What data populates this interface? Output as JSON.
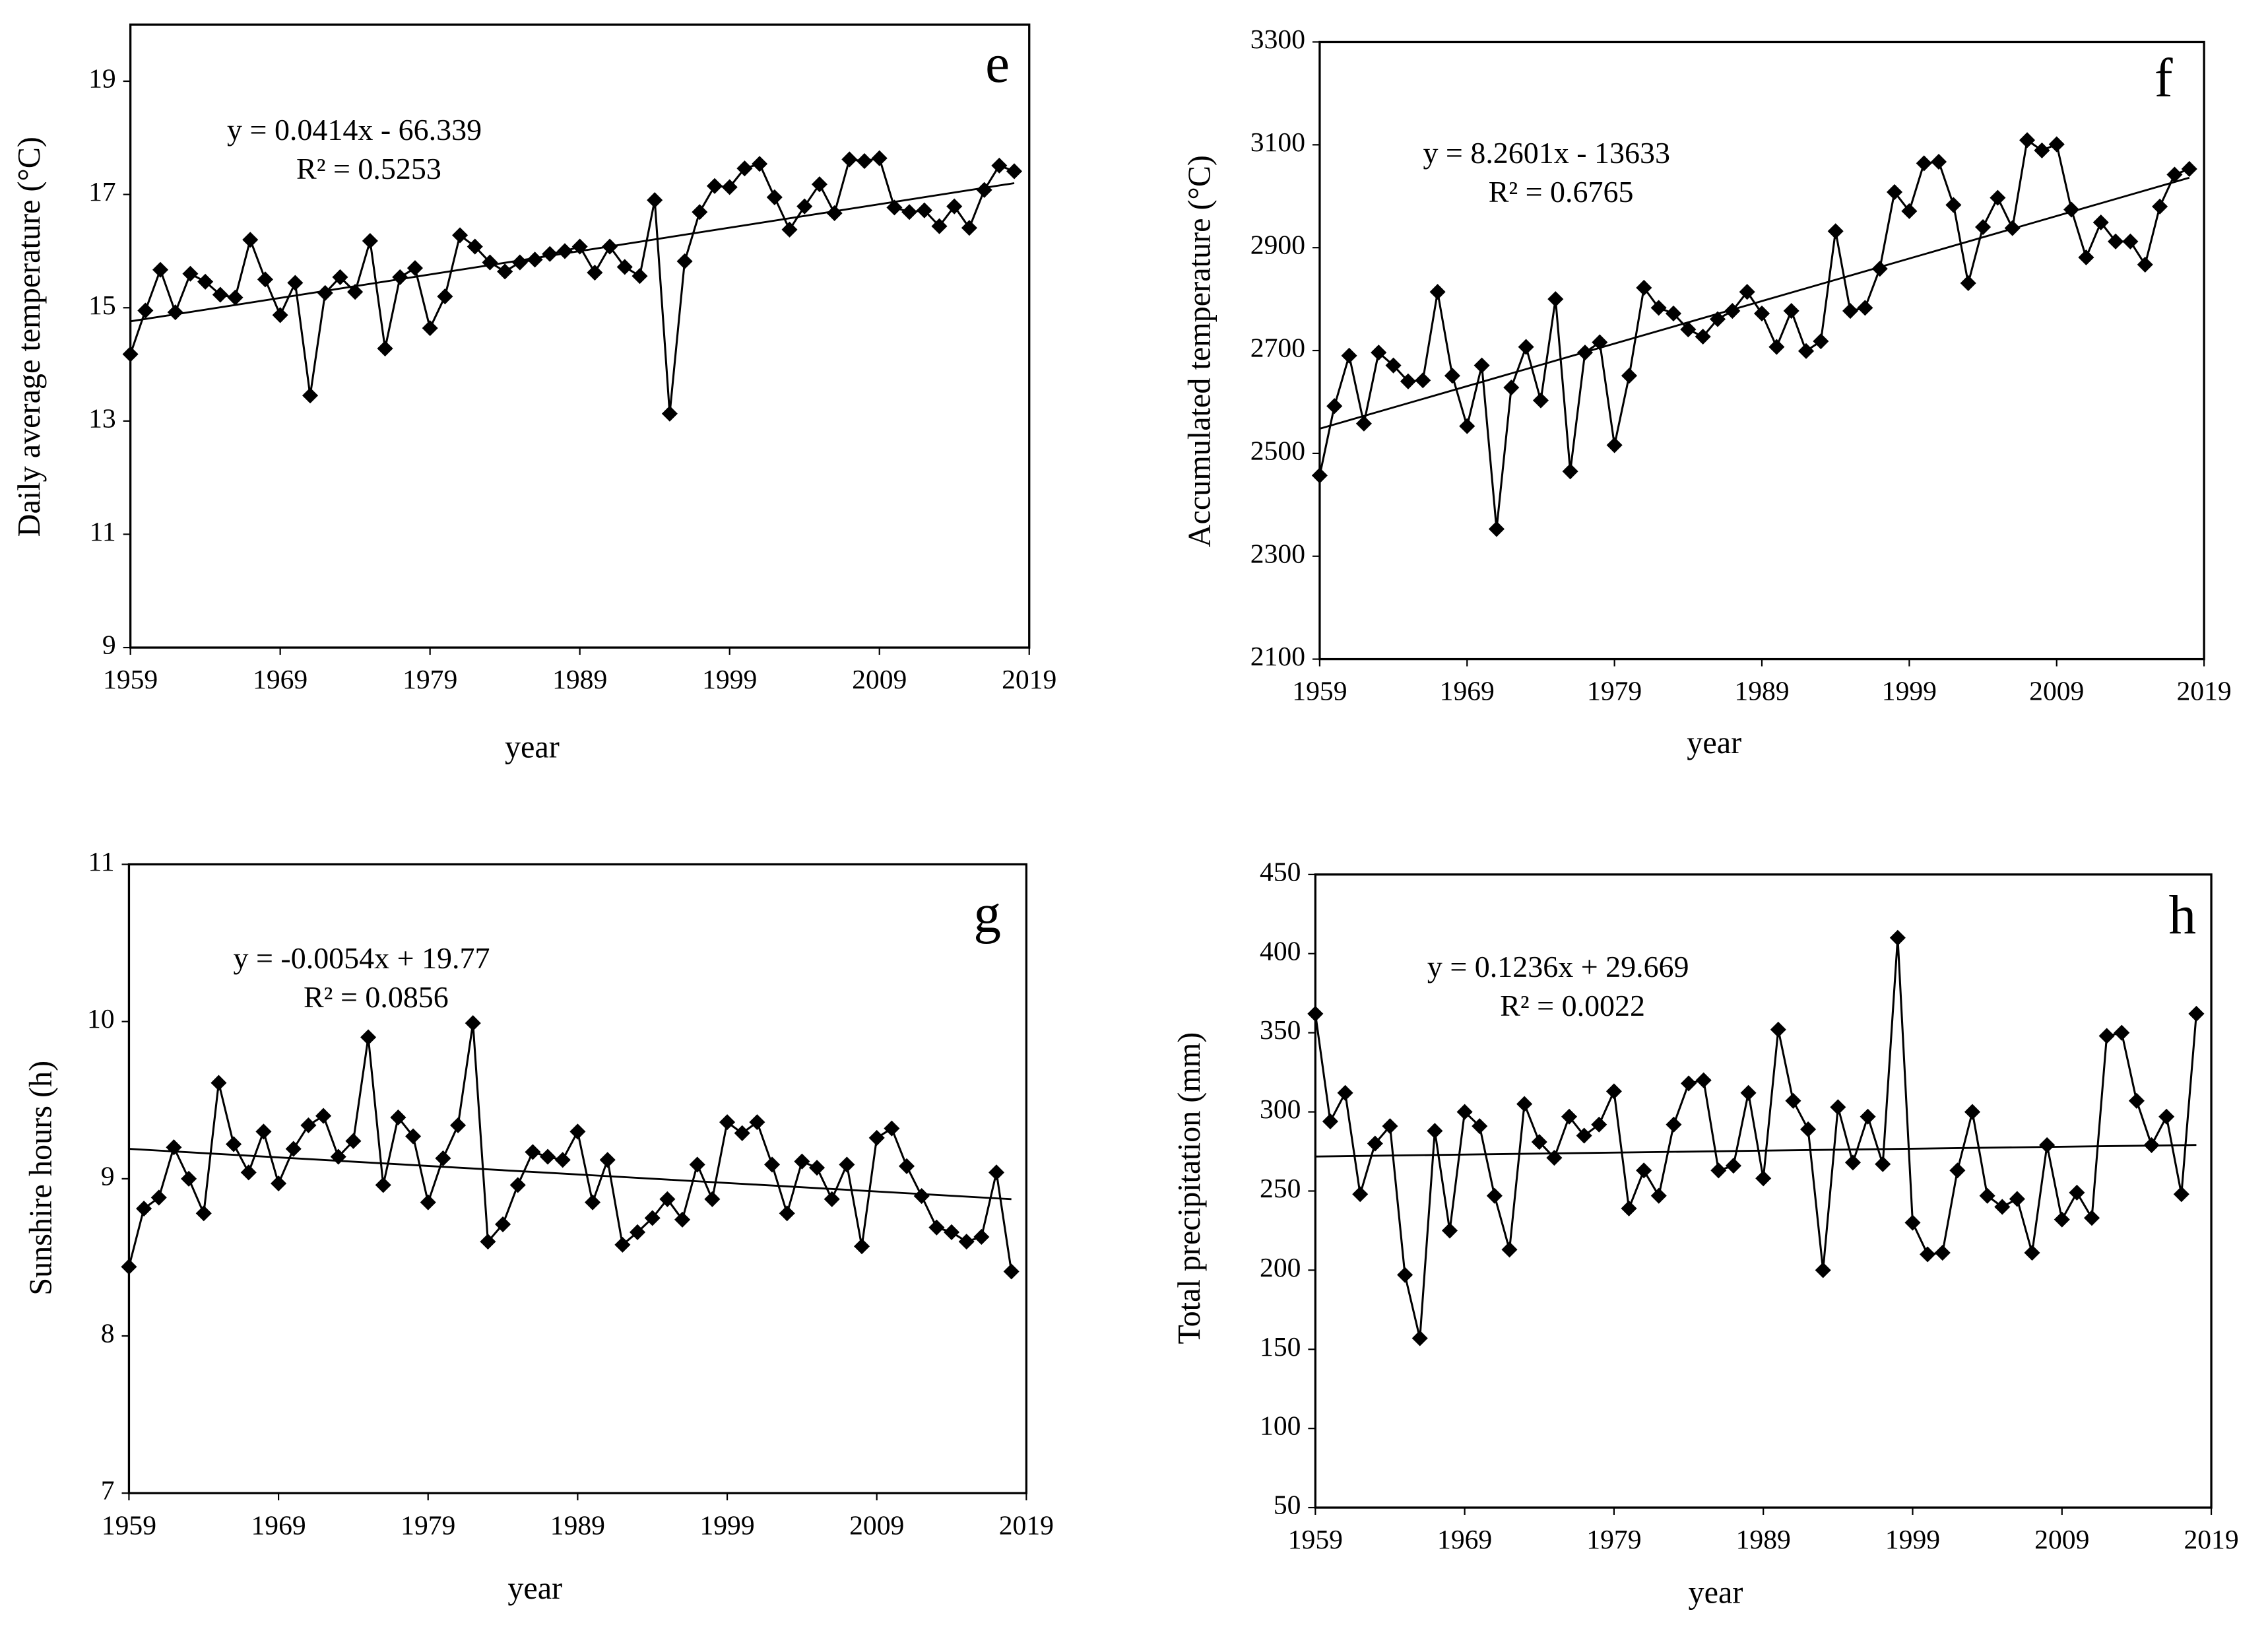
{
  "chart_data": [
    {
      "type": "line",
      "title": "e",
      "ylabel": "Daily average temperature (°C)",
      "xlabel": "year",
      "equation": [
        "y = 0.0414x - 66.339",
        "R² = 0.5253"
      ],
      "x": [
        1959,
        1960,
        1961,
        1962,
        1963,
        1964,
        1965,
        1966,
        1967,
        1968,
        1969,
        1970,
        1971,
        1972,
        1973,
        1974,
        1975,
        1976,
        1977,
        1978,
        1979,
        1980,
        1981,
        1982,
        1983,
        1984,
        1985,
        1986,
        1987,
        1988,
        1989,
        1990,
        1991,
        1992,
        1993,
        1994,
        1995,
        1996,
        1997,
        1998,
        1999,
        2000,
        2001,
        2002,
        2003,
        2004,
        2005,
        2006,
        2007,
        2008,
        2009,
        2010,
        2011,
        2012,
        2013,
        2014,
        2015,
        2016,
        2017,
        2018
      ],
      "values": [
        14.18,
        14.95,
        15.67,
        14.92,
        15.6,
        15.46,
        15.23,
        15.18,
        16.2,
        15.5,
        14.87,
        15.44,
        13.45,
        15.26,
        15.54,
        15.28,
        16.18,
        14.28,
        15.54,
        15.7,
        14.64,
        15.2,
        16.28,
        16.08,
        15.8,
        15.64,
        15.8,
        15.85,
        15.95,
        16.0,
        16.08,
        15.62,
        16.08,
        15.72,
        15.56,
        16.9,
        13.13,
        15.82,
        16.69,
        17.15,
        17.13,
        17.46,
        17.54,
        16.95,
        16.38,
        16.79,
        17.18,
        16.67,
        17.62,
        17.59,
        17.64,
        16.77,
        16.69,
        16.72,
        16.44,
        16.79,
        16.41,
        17.08,
        17.51,
        17.41
      ],
      "color": "#000000",
      "trend": {
        "x": [
          1959,
          2018
        ],
        "values": [
          14.76,
          17.2
        ]
      },
      "xlim": [
        1959,
        2019
      ],
      "xticks": [
        1959,
        1969,
        1979,
        1989,
        1999,
        2009,
        2019
      ],
      "ylim": [
        9,
        20
      ],
      "yticks": [
        9,
        11,
        13,
        15,
        17,
        19
      ]
    },
    {
      "type": "line",
      "title": "f",
      "ylabel": "Accumulated temperature (°C)",
      "xlabel": "year",
      "equation": [
        "y = 8.2601x - 13633",
        "R² = 0.6765"
      ],
      "x": [
        1959,
        1960,
        1961,
        1962,
        1963,
        1964,
        1965,
        1966,
        1967,
        1968,
        1969,
        1970,
        1971,
        1972,
        1973,
        1974,
        1975,
        1976,
        1977,
        1978,
        1979,
        1980,
        1981,
        1982,
        1983,
        1984,
        1985,
        1986,
        1987,
        1988,
        1989,
        1990,
        1991,
        1992,
        1993,
        1994,
        1995,
        1996,
        1997,
        1998,
        1999,
        2000,
        2001,
        2002,
        2003,
        2004,
        2005,
        2006,
        2007,
        2008,
        2009,
        2010,
        2011,
        2012,
        2013,
        2014,
        2015,
        2016,
        2017,
        2018
      ],
      "values": [
        2457,
        2592,
        2690,
        2558,
        2696,
        2671,
        2640,
        2642,
        2814,
        2651,
        2553,
        2671,
        2353,
        2628,
        2707,
        2603,
        2800,
        2465,
        2696,
        2716,
        2516,
        2651,
        2822,
        2783,
        2772,
        2741,
        2727,
        2761,
        2777,
        2814,
        2772,
        2707,
        2777,
        2699,
        2718,
        2932,
        2777,
        2783,
        2859,
        3008,
        2971,
        3064,
        3067,
        2983,
        2831,
        2940,
        2997,
        2938,
        3109,
        3089,
        3101,
        2974,
        2881,
        2949,
        2912,
        2912,
        2867,
        2980,
        3042,
        3053
      ],
      "color": "#000000",
      "trend": {
        "x": [
          1959,
          2018
        ],
        "values": [
          2548,
          3036
        ]
      },
      "xlim": [
        1959,
        2019
      ],
      "xticks": [
        1959,
        1969,
        1979,
        1989,
        1999,
        2009,
        2019
      ],
      "ylim": [
        2100,
        3300
      ],
      "yticks": [
        2100,
        2300,
        2500,
        2700,
        2900,
        3100,
        3300
      ]
    },
    {
      "type": "line",
      "title": "g",
      "ylabel": "Sunshire hours (h)",
      "xlabel": "year",
      "equation": [
        "y = -0.0054x + 19.77",
        "R² = 0.0856"
      ],
      "x": [
        1959,
        1960,
        1961,
        1962,
        1963,
        1964,
        1965,
        1966,
        1967,
        1968,
        1969,
        1970,
        1971,
        1972,
        1973,
        1974,
        1975,
        1976,
        1977,
        1978,
        1979,
        1980,
        1981,
        1982,
        1983,
        1984,
        1985,
        1986,
        1987,
        1988,
        1989,
        1990,
        1991,
        1992,
        1993,
        1994,
        1995,
        1996,
        1997,
        1998,
        1999,
        2000,
        2001,
        2002,
        2003,
        2004,
        2005,
        2006,
        2007,
        2008,
        2009,
        2010,
        2011,
        2012,
        2013,
        2014,
        2015,
        2016,
        2017,
        2018
      ],
      "values": [
        8.44,
        8.81,
        8.88,
        9.2,
        9.0,
        8.78,
        9.61,
        9.22,
        9.04,
        9.3,
        8.97,
        9.19,
        9.34,
        9.4,
        9.14,
        9.24,
        9.9,
        8.96,
        9.39,
        9.27,
        8.85,
        9.13,
        9.34,
        9.99,
        8.6,
        8.71,
        8.96,
        9.17,
        9.14,
        9.12,
        9.3,
        8.85,
        9.12,
        8.58,
        8.66,
        8.75,
        8.87,
        8.74,
        9.09,
        8.87,
        9.36,
        9.29,
        9.36,
        9.09,
        8.78,
        9.11,
        9.07,
        8.87,
        9.09,
        8.57,
        9.26,
        9.32,
        9.08,
        8.89,
        8.69,
        8.66,
        8.6,
        8.63,
        9.04,
        8.41
      ],
      "color": "#000000",
      "trend": {
        "x": [
          1959,
          2018
        ],
        "values": [
          9.19,
          8.87
        ]
      },
      "xlim": [
        1959,
        2019
      ],
      "xticks": [
        1959,
        1969,
        1979,
        1989,
        1999,
        2009,
        2019
      ],
      "ylim": [
        7,
        11
      ],
      "yticks": [
        7,
        8,
        9,
        10,
        11
      ]
    },
    {
      "type": "line",
      "title": "h",
      "ylabel": "Total precipitation (mm)",
      "xlabel": "year",
      "equation": [
        "y = 0.1236x + 29.669",
        "R² = 0.0022"
      ],
      "x": [
        1959,
        1960,
        1961,
        1962,
        1963,
        1964,
        1965,
        1966,
        1967,
        1968,
        1969,
        1970,
        1971,
        1972,
        1973,
        1974,
        1975,
        1976,
        1977,
        1978,
        1979,
        1980,
        1981,
        1982,
        1983,
        1984,
        1985,
        1986,
        1987,
        1988,
        1989,
        1990,
        1991,
        1992,
        1993,
        1994,
        1995,
        1996,
        1997,
        1998,
        1999,
        2000,
        2001,
        2002,
        2003,
        2004,
        2005,
        2006,
        2007,
        2008,
        2009,
        2010,
        2011,
        2012,
        2013,
        2014,
        2015,
        2016,
        2017,
        2018
      ],
      "values": [
        362,
        294,
        312,
        248,
        280,
        291,
        197,
        157,
        288,
        225,
        300,
        291,
        247,
        213,
        305,
        281,
        271,
        297,
        285,
        292,
        313,
        239,
        263,
        247,
        292,
        318,
        320,
        263,
        266,
        312,
        258,
        352,
        307,
        289,
        200,
        303,
        268,
        297,
        267,
        410,
        230,
        210,
        211,
        263,
        300,
        247,
        240,
        245,
        211,
        279,
        232,
        249,
        233,
        348,
        350,
        307,
        279,
        297,
        248,
        362
      ],
      "color": "#000000",
      "trend": {
        "x": [
          1959,
          2018
        ],
        "values": [
          271.8,
          279.1
        ]
      },
      "xlim": [
        1959,
        2019
      ],
      "xticks": [
        1959,
        1969,
        1979,
        1989,
        1999,
        2009,
        2019
      ],
      "ylim": [
        50,
        450
      ],
      "yticks": [
        50,
        100,
        150,
        200,
        250,
        300,
        350,
        400,
        450
      ]
    }
  ]
}
